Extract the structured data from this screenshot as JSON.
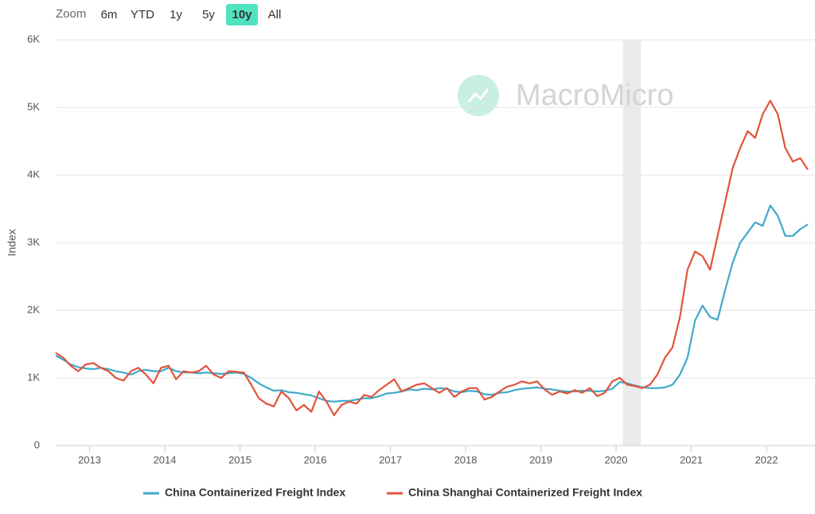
{
  "chart_data": {
    "type": "line",
    "range_selector": {
      "label": "Zoom",
      "buttons": [
        "6m",
        "YTD",
        "1y",
        "5y",
        "10y",
        "All"
      ],
      "active": 4
    },
    "watermark": "MacroMicro",
    "y_label": "Index",
    "xlim": [
      2012.55,
      2022.55
    ],
    "xticks": [
      2013,
      2014,
      2015,
      2016,
      2017,
      2018,
      2019,
      2020,
      2021,
      2022
    ],
    "ylim": [
      0,
      6000
    ],
    "yticks": [
      0,
      {
        "value": 1000,
        "label": "1K"
      },
      {
        "value": 2000,
        "label": "2K"
      },
      {
        "value": 3000,
        "label": "3K"
      },
      {
        "value": 4000,
        "label": "4K"
      },
      {
        "value": 5000,
        "label": "5K"
      },
      {
        "value": 6000,
        "label": "6K"
      }
    ],
    "grid": true,
    "legend": "bottom",
    "shaded_ranges": [
      [
        2020.09,
        2020.33
      ]
    ],
    "x": [
      2012.55,
      2012.65,
      2012.75,
      2012.85,
      2012.95,
      2013.05,
      2013.15,
      2013.25,
      2013.35,
      2013.45,
      2013.55,
      2013.65,
      2013.75,
      2013.85,
      2013.95,
      2014.05,
      2014.15,
      2014.25,
      2014.35,
      2014.45,
      2014.55,
      2014.65,
      2014.75,
      2014.85,
      2014.95,
      2015.05,
      2015.15,
      2015.25,
      2015.35,
      2015.45,
      2015.55,
      2015.65,
      2015.75,
      2015.85,
      2015.95,
      2016.05,
      2016.15,
      2016.25,
      2016.35,
      2016.45,
      2016.55,
      2016.65,
      2016.75,
      2016.85,
      2016.95,
      2017.05,
      2017.15,
      2017.25,
      2017.35,
      2017.45,
      2017.55,
      2017.65,
      2017.75,
      2017.85,
      2017.95,
      2018.05,
      2018.15,
      2018.25,
      2018.35,
      2018.45,
      2018.55,
      2018.65,
      2018.75,
      2018.85,
      2018.95,
      2019.05,
      2019.15,
      2019.25,
      2019.35,
      2019.45,
      2019.55,
      2019.65,
      2019.75,
      2019.85,
      2019.95,
      2020.05,
      2020.15,
      2020.25,
      2020.35,
      2020.45,
      2020.55,
      2020.65,
      2020.75,
      2020.85,
      2020.95,
      2021.05,
      2021.15,
      2021.25,
      2021.35,
      2021.45,
      2021.55,
      2021.65,
      2021.75,
      2021.85,
      2021.95,
      2022.05,
      2022.15,
      2022.25,
      2022.35,
      2022.45,
      2022.55
    ],
    "series": [
      {
        "name": "China Containerized Freight Index",
        "color": "#3fa9c9",
        "values": [
          1330,
          1270,
          1200,
          1160,
          1140,
          1130,
          1150,
          1130,
          1100,
          1080,
          1050,
          1100,
          1120,
          1100,
          1100,
          1150,
          1100,
          1080,
          1080,
          1070,
          1080,
          1070,
          1060,
          1070,
          1080,
          1060,
          1000,
          920,
          860,
          810,
          820,
          790,
          780,
          760,
          740,
          700,
          660,
          650,
          660,
          660,
          680,
          700,
          700,
          730,
          770,
          780,
          800,
          830,
          820,
          840,
          830,
          850,
          840,
          800,
          790,
          810,
          800,
          760,
          750,
          780,
          790,
          820,
          840,
          850,
          860,
          840,
          830,
          810,
          800,
          800,
          810,
          810,
          800,
          810,
          840,
          940,
          920,
          890,
          860,
          850,
          850,
          860,
          900,
          1050,
          1300,
          1850,
          2070,
          1900,
          1860,
          2300,
          2700,
          3000,
          3150,
          3300,
          3250,
          3550,
          3400,
          3100,
          3100,
          3200,
          3270
        ]
      },
      {
        "name": "China Shanghai Containerized Freight Index",
        "color": "#e0533b",
        "values": [
          1370,
          1300,
          1180,
          1100,
          1200,
          1220,
          1150,
          1100,
          1000,
          960,
          1100,
          1150,
          1050,
          920,
          1150,
          1180,
          980,
          1100,
          1080,
          1100,
          1180,
          1050,
          1000,
          1100,
          1090,
          1080,
          900,
          700,
          620,
          580,
          800,
          700,
          520,
          600,
          500,
          800,
          650,
          450,
          600,
          650,
          620,
          750,
          720,
          820,
          900,
          980,
          800,
          850,
          900,
          920,
          850,
          780,
          850,
          720,
          800,
          850,
          850,
          680,
          720,
          800,
          870,
          900,
          950,
          920,
          950,
          830,
          750,
          800,
          770,
          820,
          780,
          850,
          730,
          780,
          950,
          1000,
          900,
          880,
          850,
          900,
          1050,
          1300,
          1450,
          1900,
          2600,
          2870,
          2800,
          2600,
          3100,
          3600,
          4100,
          4400,
          4650,
          4550,
          4900,
          5100,
          4900,
          4400,
          4200,
          4250,
          4080
        ]
      }
    ]
  }
}
